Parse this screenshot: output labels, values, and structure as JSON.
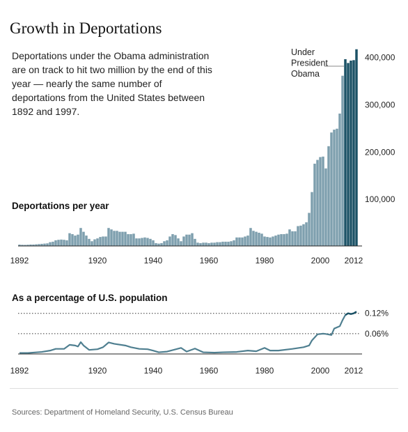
{
  "title": "Growth in Deportations",
  "intro": "Deportations under the Obama administration are on track to hit two million by the end of this year — nearly the same number of deportations from the United States between 1892 and 1997.",
  "colors": {
    "bar": "#7e9fae",
    "bar_obama": "#1c5266",
    "line": "#4f7f90",
    "axis": "#222222",
    "text": "#222222",
    "source": "#666666"
  },
  "chart_data": [
    {
      "type": "bar",
      "title": "Deportations per year",
      "x": [
        1892,
        1893,
        1894,
        1895,
        1896,
        1897,
        1898,
        1899,
        1900,
        1901,
        1902,
        1903,
        1904,
        1905,
        1906,
        1907,
        1908,
        1909,
        1910,
        1911,
        1912,
        1913,
        1914,
        1915,
        1916,
        1917,
        1918,
        1919,
        1920,
        1921,
        1922,
        1923,
        1924,
        1925,
        1926,
        1927,
        1928,
        1929,
        1930,
        1931,
        1932,
        1933,
        1934,
        1935,
        1936,
        1937,
        1938,
        1939,
        1940,
        1941,
        1942,
        1943,
        1944,
        1945,
        1946,
        1947,
        1948,
        1949,
        1950,
        1951,
        1952,
        1953,
        1954,
        1955,
        1956,
        1957,
        1958,
        1959,
        1960,
        1961,
        1962,
        1963,
        1964,
        1965,
        1966,
        1967,
        1968,
        1969,
        1970,
        1971,
        1972,
        1973,
        1974,
        1975,
        1976,
        1977,
        1978,
        1979,
        1980,
        1981,
        1982,
        1983,
        1984,
        1985,
        1986,
        1987,
        1988,
        1989,
        1990,
        1991,
        1992,
        1993,
        1994,
        1995,
        1996,
        1997,
        1998,
        1999,
        2000,
        2001,
        2002,
        2003,
        2004,
        2005,
        2006,
        2007,
        2008,
        2009,
        2010,
        2011,
        2012,
        2013
      ],
      "values": [
        2800,
        2400,
        2300,
        2600,
        3000,
        3000,
        3500,
        4000,
        4500,
        5000,
        5500,
        8000,
        9000,
        12000,
        13000,
        13500,
        13000,
        12000,
        27000,
        25000,
        22000,
        24000,
        38000,
        30000,
        22000,
        15000,
        10000,
        14000,
        16000,
        19000,
        20000,
        20000,
        38000,
        35000,
        32000,
        32000,
        30000,
        30000,
        30000,
        25000,
        25000,
        26000,
        16000,
        16000,
        17000,
        18000,
        17000,
        15000,
        12000,
        6000,
        5000,
        6000,
        10000,
        12000,
        20000,
        25000,
        23000,
        16000,
        10000,
        20000,
        24000,
        24000,
        27000,
        15000,
        7000,
        6000,
        7000,
        7000,
        6000,
        7000,
        7000,
        8000,
        8000,
        9000,
        9000,
        9000,
        10000,
        12000,
        18000,
        18000,
        18000,
        20000,
        22000,
        38000,
        32000,
        30000,
        28000,
        26000,
        20000,
        19000,
        18000,
        20000,
        22000,
        24000,
        25000,
        25000,
        26000,
        35000,
        31000,
        31000,
        42000,
        43000,
        46000,
        50000,
        70000,
        114000,
        174000,
        182000,
        188000,
        189000,
        164000,
        211000,
        240000,
        246000,
        248000,
        280000,
        360000,
        395000,
        387000,
        392000,
        393000,
        416000
      ],
      "highlight_from": 2009,
      "yticks": [
        100000,
        200000,
        300000,
        400000
      ],
      "ytick_labels": [
        "100,000",
        "200,000",
        "300,000",
        "400,000"
      ],
      "ylim": [
        0,
        420000
      ],
      "xticks": [
        1892,
        1920,
        1940,
        1960,
        1980,
        2000,
        2012
      ],
      "xtick_labels": [
        "1892",
        "1920",
        "1940",
        "1960",
        "1980",
        "2000",
        "2012"
      ],
      "annotation": {
        "lines": [
          "Under",
          "President",
          "Obama"
        ]
      }
    },
    {
      "type": "line",
      "title": "As a percentage of U.S. population",
      "x": [
        1892,
        1895,
        1900,
        1903,
        1905,
        1908,
        1910,
        1912,
        1913,
        1914,
        1915,
        1917,
        1920,
        1922,
        1924,
        1926,
        1930,
        1932,
        1935,
        1938,
        1940,
        1942,
        1945,
        1950,
        1952,
        1955,
        1958,
        1962,
        1965,
        1970,
        1974,
        1977,
        1980,
        1982,
        1985,
        1990,
        1994,
        1996,
        1997,
        1999,
        2001,
        2002,
        2004,
        2005,
        2007,
        2008,
        2009,
        2010,
        2011,
        2012,
        2013
      ],
      "y": [
        0.003,
        0.003,
        0.006,
        0.01,
        0.015,
        0.015,
        0.027,
        0.025,
        0.022,
        0.035,
        0.025,
        0.012,
        0.014,
        0.02,
        0.034,
        0.03,
        0.025,
        0.02,
        0.015,
        0.014,
        0.01,
        0.005,
        0.007,
        0.018,
        0.007,
        0.016,
        0.005,
        0.004,
        0.005,
        0.006,
        0.01,
        0.008,
        0.018,
        0.01,
        0.01,
        0.015,
        0.02,
        0.025,
        0.04,
        0.058,
        0.06,
        0.059,
        0.056,
        0.075,
        0.082,
        0.1,
        0.115,
        0.12,
        0.118,
        0.12,
        0.125
      ],
      "ylim": [
        0,
        0.14
      ],
      "yticks": [
        0.06,
        0.12
      ],
      "ytick_labels": [
        "0.06%",
        "0.12%"
      ],
      "xticks": [
        1892,
        1920,
        1940,
        1960,
        1980,
        2000,
        2012
      ],
      "xtick_labels": [
        "1892",
        "1920",
        "1940",
        "1960",
        "1980",
        "2000",
        "2012"
      ]
    }
  ],
  "source": "Sources: Department of Homeland Security, U.S. Census Bureau"
}
